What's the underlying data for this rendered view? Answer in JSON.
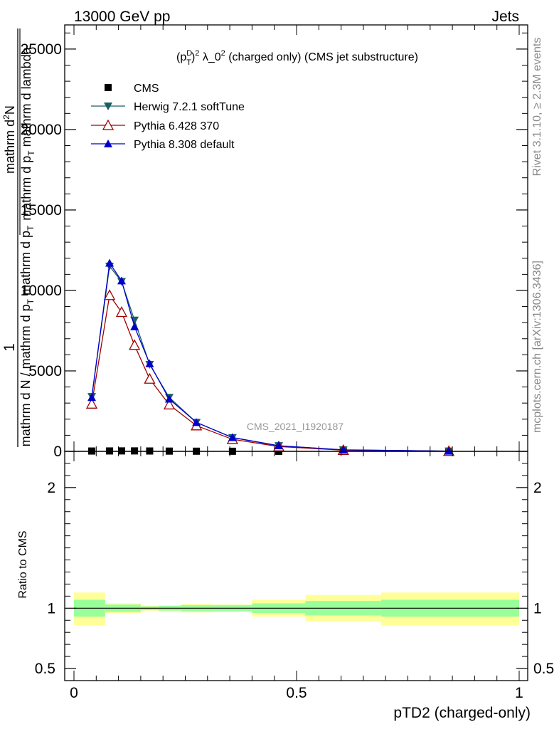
{
  "header": {
    "left": "13000 GeV pp",
    "right": "Jets"
  },
  "side_labels": {
    "rivet": "Rivet 3.1.10, ≥ 2.3M events",
    "mcplots": "mcplots.cern.ch [arXiv:1306.3436]"
  },
  "chart_data": [
    {
      "type": "line",
      "title": "(p_T^D)^2 λ_0^2 (charged only) (CMS jet substructure)",
      "title_parts": {
        "p": "(p",
        "sup_d": "D",
        "sub_t": "T",
        "close": ")",
        "sup_2": "2",
        "lambda": " λ_0",
        "sup_2b": "2",
        "rest": " (charged only) (CMS jet substructure)"
      },
      "ylabel": "1 / mathrm d N / mathrm d p_T mathrm d p_T mathrm d^2 N / mathrm d lambda",
      "ylabel_parts": {
        "one": "1",
        "den": "mathrm d N / mathrm d p",
        "den_sub": "T",
        "den2": " mathrm d p",
        "den2_sub": "T",
        "num": "mathrm d",
        "num_sup": "2",
        "num_n": "N",
        "num2": "mathrm d p",
        "num2_sub": "T",
        "num3": " mathrm d lambda"
      },
      "watermark": "CMS_2021_I1920187",
      "xlim": [
        0,
        1
      ],
      "ylim": [
        0,
        26500
      ],
      "yticks": [
        0,
        5000,
        10000,
        15000,
        20000,
        25000
      ],
      "ytick_labels": [
        "0",
        "5000",
        "10000",
        "15000",
        "20000",
        "25000"
      ],
      "legend_position": "top-left",
      "series": [
        {
          "name": "CMS",
          "color": "#000000",
          "marker": "square",
          "x": [
            0.04,
            0.08,
            0.107,
            0.136,
            0.17,
            0.214,
            0.275,
            0.356,
            0.46,
            0.605,
            0.842
          ],
          "y": [
            20,
            25,
            28,
            28,
            22,
            15,
            9,
            5,
            3,
            1,
            0
          ]
        },
        {
          "name": "Herwig 7.2.1 softTune",
          "color": "#1a6060",
          "marker": "triangle-down",
          "x": [
            0.04,
            0.08,
            0.107,
            0.136,
            0.17,
            0.214,
            0.275,
            0.356,
            0.46,
            0.605,
            0.842
          ],
          "y": [
            3400,
            11500,
            10550,
            8150,
            5400,
            3350,
            1800,
            850,
            350,
            90,
            15
          ]
        },
        {
          "name": "Pythia 6.428 370",
          "color": "#a00000",
          "marker": "triangle-up-open",
          "x": [
            0.04,
            0.08,
            0.107,
            0.136,
            0.17,
            0.214,
            0.275,
            0.356,
            0.46,
            0.605,
            0.842
          ],
          "y": [
            2950,
            9700,
            8650,
            6600,
            4500,
            2900,
            1600,
            750,
            300,
            75,
            10
          ]
        },
        {
          "name": "Pythia 8.308 default",
          "color": "#0000cc",
          "marker": "triangle-up",
          "x": [
            0.04,
            0.08,
            0.107,
            0.136,
            0.17,
            0.214,
            0.275,
            0.356,
            0.46,
            0.605,
            0.842
          ],
          "y": [
            3350,
            11700,
            10600,
            7750,
            5450,
            3250,
            1800,
            860,
            350,
            95,
            15
          ]
        }
      ]
    },
    {
      "type": "area",
      "ylabel": "Ratio to CMS",
      "xlabel": "pTD2 (charged-only)",
      "xlim": [
        0,
        1
      ],
      "ylim": [
        0.4,
        2.3
      ],
      "yticks": [
        0.5,
        1,
        2
      ],
      "ytick_labels": [
        "0.5",
        "1",
        "2"
      ],
      "xticks": [
        0,
        0.5,
        1
      ],
      "xtick_labels": [
        "0",
        "0.5",
        "1"
      ],
      "reference_line": 1,
      "band_colors": {
        "stat": "#99ff99",
        "total": "#ffff99"
      },
      "bins": [
        {
          "x0": 0.0,
          "x1": 0.07,
          "stat": [
            0.93,
            1.07
          ],
          "total": [
            0.86,
            1.13
          ]
        },
        {
          "x0": 0.07,
          "x1": 0.15,
          "stat": [
            0.97,
            1.03
          ],
          "total": [
            0.96,
            1.04
          ]
        },
        {
          "x0": 0.15,
          "x1": 0.19,
          "stat": [
            0.985,
            1.015
          ],
          "total": [
            0.98,
            1.02
          ]
        },
        {
          "x0": 0.19,
          "x1": 0.24,
          "stat": [
            0.98,
            1.02
          ],
          "total": [
            0.975,
            1.025
          ]
        },
        {
          "x0": 0.24,
          "x1": 0.31,
          "stat": [
            0.975,
            1.025
          ],
          "total": [
            0.965,
            1.035
          ]
        },
        {
          "x0": 0.31,
          "x1": 0.4,
          "stat": [
            0.975,
            1.025
          ],
          "total": [
            0.97,
            1.03
          ]
        },
        {
          "x0": 0.4,
          "x1": 0.52,
          "stat": [
            0.96,
            1.04
          ],
          "total": [
            0.93,
            1.07
          ]
        },
        {
          "x0": 0.52,
          "x1": 0.69,
          "stat": [
            0.94,
            1.06
          ],
          "total": [
            0.89,
            1.11
          ]
        },
        {
          "x0": 0.69,
          "x1": 1.0,
          "stat": [
            0.93,
            1.07
          ],
          "total": [
            0.86,
            1.13
          ]
        }
      ]
    }
  ]
}
